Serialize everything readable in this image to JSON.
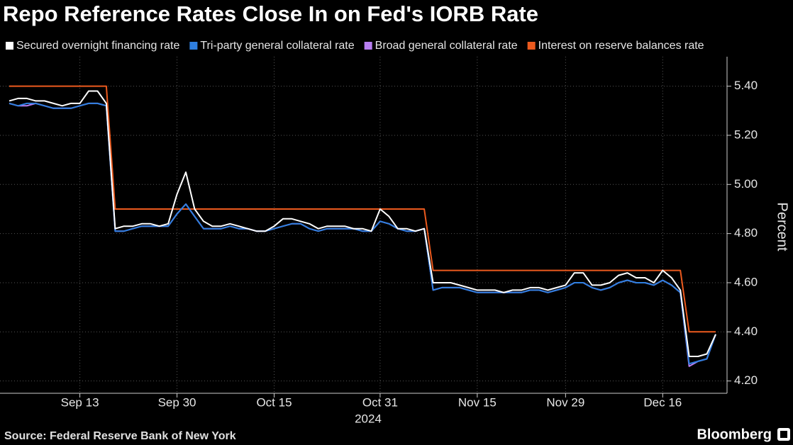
{
  "chart_data": {
    "type": "line",
    "title": "Repo Reference Rates Close In on Fed's IORB Rate",
    "source": "Source: Federal Reserve Bank of New York",
    "logo": "Bloomberg",
    "ylabel": "Percent",
    "xlabel": "2024",
    "x": [
      "2024-09-03",
      "2024-09-04",
      "2024-09-05",
      "2024-09-06",
      "2024-09-09",
      "2024-09-10",
      "2024-09-11",
      "2024-09-12",
      "2024-09-13",
      "2024-09-16",
      "2024-09-17",
      "2024-09-18",
      "2024-09-19",
      "2024-09-20",
      "2024-09-23",
      "2024-09-24",
      "2024-09-25",
      "2024-09-26",
      "2024-09-27",
      "2024-09-30",
      "2024-10-01",
      "2024-10-02",
      "2024-10-03",
      "2024-10-04",
      "2024-10-07",
      "2024-10-08",
      "2024-10-09",
      "2024-10-10",
      "2024-10-11",
      "2024-10-14",
      "2024-10-15",
      "2024-10-16",
      "2024-10-17",
      "2024-10-18",
      "2024-10-21",
      "2024-10-22",
      "2024-10-23",
      "2024-10-24",
      "2024-10-25",
      "2024-10-28",
      "2024-10-29",
      "2024-10-30",
      "2024-10-31",
      "2024-11-01",
      "2024-11-04",
      "2024-11-05",
      "2024-11-06",
      "2024-11-07",
      "2024-11-08",
      "2024-11-11",
      "2024-11-12",
      "2024-11-13",
      "2024-11-14",
      "2024-11-15",
      "2024-11-18",
      "2024-11-19",
      "2024-11-20",
      "2024-11-21",
      "2024-11-22",
      "2024-11-25",
      "2024-11-26",
      "2024-11-27",
      "2024-11-28",
      "2024-11-29",
      "2024-12-02",
      "2024-12-03",
      "2024-12-04",
      "2024-12-05",
      "2024-12-06",
      "2024-12-09",
      "2024-12-10",
      "2024-12-11",
      "2024-12-12",
      "2024-12-13",
      "2024-12-16",
      "2024-12-17",
      "2024-12-18",
      "2024-12-19",
      "2024-12-20",
      "2024-12-23",
      "2024-12-24"
    ],
    "xticks": [
      {
        "value": "2024-09-13",
        "label": "Sep 13"
      },
      {
        "value": "2024-09-30",
        "label": "Sep 30"
      },
      {
        "value": "2024-10-15",
        "label": "Oct 15"
      },
      {
        "value": "2024-10-31",
        "label": "Oct 31"
      },
      {
        "value": "2024-11-15",
        "label": "Nov 15"
      },
      {
        "value": "2024-11-29",
        "label": "Nov 29"
      },
      {
        "value": "2024-12-16",
        "label": "Dec 16"
      }
    ],
    "ylim": [
      4.15,
      5.52
    ],
    "yticks": [
      {
        "value": 4.2,
        "label": "4.20"
      },
      {
        "value": 4.4,
        "label": "4.40"
      },
      {
        "value": 4.6,
        "label": "4.60"
      },
      {
        "value": 4.8,
        "label": "4.80"
      },
      {
        "value": 5.0,
        "label": "5.00"
      },
      {
        "value": 5.2,
        "label": "5.20"
      },
      {
        "value": 5.4,
        "label": "5.40"
      }
    ],
    "grid": true,
    "series": [
      {
        "name": "Secured overnight financing rate",
        "color": "#ffffff",
        "values": [
          5.34,
          5.35,
          5.35,
          5.34,
          5.34,
          5.33,
          5.32,
          5.33,
          5.33,
          5.38,
          5.38,
          5.33,
          4.82,
          4.83,
          4.83,
          4.84,
          4.84,
          4.83,
          4.84,
          4.96,
          5.05,
          4.9,
          4.85,
          4.83,
          4.83,
          4.84,
          4.83,
          4.82,
          4.81,
          4.81,
          4.83,
          4.86,
          4.86,
          4.85,
          4.84,
          4.82,
          4.83,
          4.83,
          4.83,
          4.82,
          4.82,
          4.81,
          4.9,
          4.87,
          4.82,
          4.82,
          4.81,
          4.82,
          4.6,
          4.6,
          4.6,
          4.59,
          4.58,
          4.57,
          4.57,
          4.57,
          4.56,
          4.57,
          4.57,
          4.58,
          4.58,
          4.57,
          4.58,
          4.59,
          4.64,
          4.64,
          4.59,
          4.59,
          4.6,
          4.63,
          4.64,
          4.62,
          4.62,
          4.6,
          4.65,
          4.62,
          4.57,
          4.3,
          4.3,
          4.31,
          4.39
        ]
      },
      {
        "name": "Tri-party general collateral rate",
        "color": "#2f7fe0",
        "values": [
          5.33,
          5.32,
          5.33,
          5.33,
          5.32,
          5.31,
          5.31,
          5.31,
          5.32,
          5.33,
          5.33,
          5.32,
          4.81,
          4.81,
          4.82,
          4.83,
          4.83,
          4.83,
          4.83,
          4.88,
          4.92,
          4.87,
          4.82,
          4.82,
          4.82,
          4.83,
          4.82,
          4.82,
          4.81,
          4.81,
          4.82,
          4.83,
          4.84,
          4.84,
          4.82,
          4.81,
          4.82,
          4.82,
          4.82,
          4.82,
          4.81,
          4.81,
          4.85,
          4.84,
          4.82,
          4.81,
          4.81,
          4.82,
          4.57,
          4.58,
          4.58,
          4.58,
          4.57,
          4.56,
          4.56,
          4.56,
          4.56,
          4.56,
          4.56,
          4.57,
          4.57,
          4.56,
          4.57,
          4.58,
          4.6,
          4.6,
          4.58,
          4.57,
          4.58,
          4.6,
          4.61,
          4.6,
          4.6,
          4.59,
          4.61,
          4.59,
          4.56,
          4.27,
          4.28,
          4.29,
          4.39
        ]
      },
      {
        "name": "Broad general collateral rate",
        "color": "#b87ff2",
        "values": [
          5.33,
          5.32,
          5.32,
          5.33,
          5.32,
          5.31,
          5.31,
          5.31,
          5.32,
          5.33,
          5.33,
          5.32,
          4.81,
          4.81,
          4.82,
          4.83,
          4.83,
          4.83,
          4.83,
          4.88,
          4.92,
          4.87,
          4.82,
          4.82,
          4.82,
          4.83,
          4.82,
          4.82,
          4.81,
          4.81,
          4.82,
          4.83,
          4.84,
          4.84,
          4.82,
          4.81,
          4.82,
          4.82,
          4.82,
          4.82,
          4.81,
          4.81,
          4.85,
          4.84,
          4.82,
          4.81,
          4.81,
          4.82,
          4.57,
          4.58,
          4.58,
          4.58,
          4.57,
          4.56,
          4.56,
          4.56,
          4.56,
          4.56,
          4.56,
          4.57,
          4.57,
          4.56,
          4.57,
          4.58,
          4.6,
          4.6,
          4.58,
          4.57,
          4.58,
          4.6,
          4.61,
          4.6,
          4.6,
          4.59,
          4.61,
          4.59,
          4.56,
          4.26,
          4.28,
          4.29,
          4.39
        ]
      },
      {
        "name": "Interest on reserve balances rate",
        "color": "#ec5a1e",
        "values": [
          5.4,
          5.4,
          5.4,
          5.4,
          5.4,
          5.4,
          5.4,
          5.4,
          5.4,
          5.4,
          5.4,
          5.4,
          4.9,
          4.9,
          4.9,
          4.9,
          4.9,
          4.9,
          4.9,
          4.9,
          4.9,
          4.9,
          4.9,
          4.9,
          4.9,
          4.9,
          4.9,
          4.9,
          4.9,
          4.9,
          4.9,
          4.9,
          4.9,
          4.9,
          4.9,
          4.9,
          4.9,
          4.9,
          4.9,
          4.9,
          4.9,
          4.9,
          4.9,
          4.9,
          4.9,
          4.9,
          4.9,
          4.9,
          4.65,
          4.65,
          4.65,
          4.65,
          4.65,
          4.65,
          4.65,
          4.65,
          4.65,
          4.65,
          4.65,
          4.65,
          4.65,
          4.65,
          4.65,
          4.65,
          4.65,
          4.65,
          4.65,
          4.65,
          4.65,
          4.65,
          4.65,
          4.65,
          4.65,
          4.65,
          4.65,
          4.65,
          4.65,
          4.4,
          4.4,
          4.4,
          4.4
        ]
      }
    ]
  }
}
